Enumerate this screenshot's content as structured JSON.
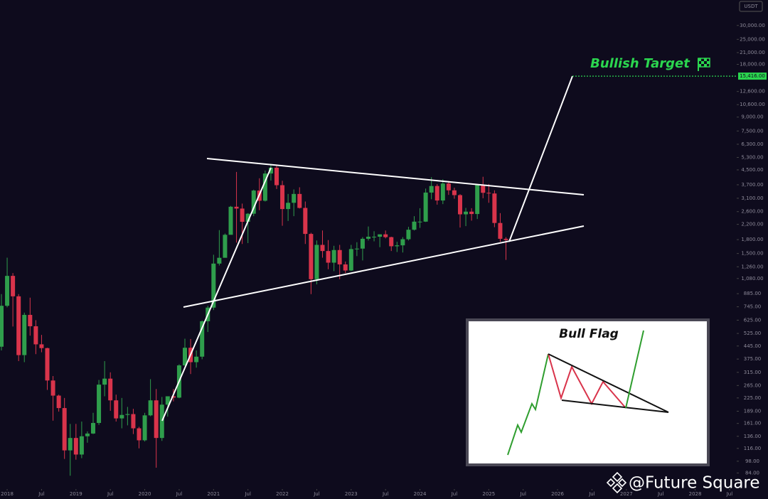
{
  "chart_data": {
    "type": "candlestick",
    "currency": "USDT",
    "log_scale": true,
    "up_color": "#2f9e4c",
    "down_color": "#d9344b",
    "annotation": "Bullish Target",
    "target": {
      "value": 15416,
      "label": "15,416.00"
    },
    "inset_title": "Bull Flag",
    "watermark": "@Future Square",
    "xlim": [
      "2017-12",
      "2028-08"
    ],
    "ylim": [
      68,
      41900
    ],
    "x": [
      "2017-12",
      "2018-01",
      "2018-02",
      "2018-03",
      "2018-04",
      "2018-05",
      "2018-06",
      "2018-07",
      "2018-08",
      "2018-09",
      "2018-10",
      "2018-11",
      "2018-12",
      "2019-01",
      "2019-02",
      "2019-03",
      "2019-04",
      "2019-05",
      "2019-06",
      "2019-07",
      "2019-08",
      "2019-09",
      "2019-10",
      "2019-11",
      "2019-12",
      "2020-01",
      "2020-02",
      "2020-03",
      "2020-04",
      "2020-05",
      "2020-06",
      "2020-07",
      "2020-08",
      "2020-09",
      "2020-10",
      "2020-11",
      "2020-12",
      "2021-01",
      "2021-02",
      "2021-03",
      "2021-04",
      "2021-05",
      "2021-06",
      "2021-07",
      "2021-08",
      "2021-09",
      "2021-10",
      "2021-11",
      "2021-12",
      "2022-01",
      "2022-02",
      "2022-03",
      "2022-04",
      "2022-05",
      "2022-06",
      "2022-07",
      "2022-08",
      "2022-09",
      "2022-10",
      "2022-11",
      "2022-12",
      "2023-01",
      "2023-02",
      "2023-03",
      "2023-04",
      "2023-05",
      "2023-06",
      "2023-07",
      "2023-08",
      "2023-09",
      "2023-10",
      "2023-11",
      "2023-12",
      "2024-01",
      "2024-02",
      "2024-03",
      "2024-04",
      "2024-05",
      "2024-06",
      "2024-07",
      "2024-08",
      "2024-09",
      "2024-10",
      "2024-11",
      "2024-12",
      "2025-01",
      "2025-02",
      "2025-03",
      "2025-04"
    ],
    "open": [
      441,
      755,
      1118,
      855,
      395,
      670,
      577,
      455,
      433,
      283,
      232,
      197,
      113,
      133,
      107,
      136,
      141,
      162,
      268,
      290,
      218,
      172,
      180,
      182,
      151,
      129,
      179,
      218,
      133,
      206,
      230,
      226,
      345,
      435,
      360,
      387,
      616,
      737,
      1314,
      1418,
      1918,
      2773,
      2707,
      2275,
      2530,
      3430,
      3000,
      4290,
      4630,
      3680,
      2690,
      2920,
      3280,
      2730,
      1940,
      1070,
      1680,
      1550,
      1330,
      1570,
      1300,
      1200,
      1590,
      1600,
      1820,
      1870,
      1870,
      1930,
      1860,
      1650,
      1670,
      1810,
      2050,
      2280,
      2280,
      3340,
      3640,
      3010,
      3760,
      3440,
      3230,
      2510,
      2600,
      2520,
      3700,
      3330,
      3300,
      2240,
      1820
    ],
    "high": [
      880,
      1420,
      1160,
      880,
      690,
      840,
      625,
      515,
      435,
      300,
      235,
      225,
      160,
      160,
      165,
      145,
      185,
      285,
      365,
      315,
      235,
      225,
      200,
      195,
      154,
      185,
      288,
      253,
      228,
      227,
      253,
      350,
      490,
      488,
      420,
      622,
      755,
      1476,
      2040,
      1950,
      2800,
      4380,
      2890,
      2550,
      3470,
      4030,
      4460,
      4870,
      4780,
      3900,
      3280,
      3480,
      3580,
      2970,
      1970,
      1780,
      2030,
      1790,
      1660,
      1680,
      1350,
      1680,
      1740,
      1860,
      2140,
      2010,
      1930,
      2030,
      1870,
      1750,
      1860,
      2130,
      2450,
      2720,
      3520,
      4090,
      3730,
      3980,
      3890,
      3560,
      3270,
      2730,
      2720,
      3680,
      4110,
      3740,
      3440,
      2550,
      1860
    ],
    "low": [
      420,
      740,
      575,
      365,
      360,
      510,
      400,
      410,
      250,
      167,
      188,
      101,
      81,
      100,
      102,
      125,
      140,
      158,
      230,
      190,
      165,
      151,
      157,
      140,
      116,
      127,
      177,
      90,
      128,
      176,
      215,
      224,
      343,
      308,
      335,
      374,
      535,
      714,
      1282,
      1455,
      1930,
      1730,
      1700,
      1720,
      2450,
      2650,
      2970,
      3910,
      3500,
      2160,
      2300,
      2450,
      2710,
      1700,
      880,
      1000,
      1420,
      1220,
      1190,
      1070,
      1160,
      1190,
      1450,
      1370,
      1780,
      1760,
      1630,
      1830,
      1550,
      1530,
      1520,
      1780,
      2030,
      2100,
      2270,
      3060,
      2850,
      2870,
      3240,
      3080,
      2110,
      2150,
      2310,
      2360,
      3100,
      2920,
      2120,
      1750,
      1380
    ],
    "close": [
      755,
      1118,
      855,
      395,
      670,
      577,
      455,
      433,
      283,
      232,
      197,
      113,
      133,
      107,
      136,
      141,
      162,
      268,
      290,
      218,
      172,
      180,
      182,
      151,
      129,
      179,
      218,
      133,
      206,
      230,
      226,
      345,
      435,
      360,
      387,
      616,
      737,
      1314,
      1418,
      1918,
      2773,
      2707,
      2275,
      2530,
      3430,
      3000,
      4290,
      4630,
      3680,
      2690,
      2920,
      3280,
      2730,
      1940,
      1070,
      1680,
      1550,
      1330,
      1570,
      1300,
      1200,
      1590,
      1600,
      1820,
      1870,
      1870,
      1930,
      1860,
      1650,
      1670,
      1810,
      2050,
      2280,
      2280,
      3340,
      3640,
      3010,
      3760,
      3440,
      3230,
      2510,
      2600,
      2520,
      3700,
      3330,
      3300,
      2240,
      1820,
      1790
    ],
    "yticks": [
      {
        "value": 30000,
        "label": "30,000.00"
      },
      {
        "value": 25000,
        "label": "25,000.00"
      },
      {
        "value": 21000,
        "label": "21,000.00"
      },
      {
        "value": 18000,
        "label": "18,000.00"
      },
      {
        "value": 12600,
        "label": "12,600.00"
      },
      {
        "value": 10600,
        "label": "10,600.00"
      },
      {
        "value": 9000,
        "label": "9,000.00"
      },
      {
        "value": 7500,
        "label": "7,500.00"
      },
      {
        "value": 6300,
        "label": "6,300.00"
      },
      {
        "value": 5300,
        "label": "5,300.00"
      },
      {
        "value": 4500,
        "label": "4,500.00"
      },
      {
        "value": 3700,
        "label": "3,700.00"
      },
      {
        "value": 3100,
        "label": "3,100.00"
      },
      {
        "value": 2600,
        "label": "2,600.00"
      },
      {
        "value": 2200,
        "label": "2,200.00"
      },
      {
        "value": 1800,
        "label": "1,800.00"
      },
      {
        "value": 1500,
        "label": "1,500.00"
      },
      {
        "value": 1260,
        "label": "1,260.00"
      },
      {
        "value": 1080,
        "label": "1,080.00"
      },
      {
        "value": 885,
        "label": "885.00"
      },
      {
        "value": 745,
        "label": "745.00"
      },
      {
        "value": 625,
        "label": "625.00"
      },
      {
        "value": 525,
        "label": "525.00"
      },
      {
        "value": 445,
        "label": "445.00"
      },
      {
        "value": 375,
        "label": "375.00"
      },
      {
        "value": 315,
        "label": "315.00"
      },
      {
        "value": 265,
        "label": "265.00"
      },
      {
        "value": 225,
        "label": "225.00"
      },
      {
        "value": 189,
        "label": "189.00"
      },
      {
        "value": 161,
        "label": "161.00"
      },
      {
        "value": 136,
        "label": "136.00"
      },
      {
        "value": 116,
        "label": "116.00"
      },
      {
        "value": 98,
        "label": "98.00"
      },
      {
        "value": 84,
        "label": "84.00"
      }
    ],
    "xticks": [
      {
        "value": "2018-01",
        "label": "2018"
      },
      {
        "value": "2018-07",
        "label": "Jul"
      },
      {
        "value": "2019-01",
        "label": "2019"
      },
      {
        "value": "2019-07",
        "label": "Jul"
      },
      {
        "value": "2020-01",
        "label": "2020"
      },
      {
        "value": "2020-07",
        "label": "Jul"
      },
      {
        "value": "2021-01",
        "label": "2021"
      },
      {
        "value": "2021-07",
        "label": "Jul"
      },
      {
        "value": "2022-01",
        "label": "2022"
      },
      {
        "value": "2022-07",
        "label": "Jul"
      },
      {
        "value": "2023-01",
        "label": "2023"
      },
      {
        "value": "2023-07",
        "label": "Jul"
      },
      {
        "value": "2024-01",
        "label": "2024"
      },
      {
        "value": "2024-07",
        "label": "Jul"
      },
      {
        "value": "2025-01",
        "label": "2025"
      },
      {
        "value": "2025-07",
        "label": "Jul"
      },
      {
        "value": "2026-01",
        "label": "2026"
      },
      {
        "value": "2026-07",
        "label": "Jul"
      },
      {
        "value": "2027-01",
        "label": "2027"
      },
      {
        "value": "2027-07",
        "label": "Jul"
      },
      {
        "value": "2028-01",
        "label": "2028"
      },
      {
        "value": "2028-07",
        "label": "Jul"
      }
    ]
  }
}
